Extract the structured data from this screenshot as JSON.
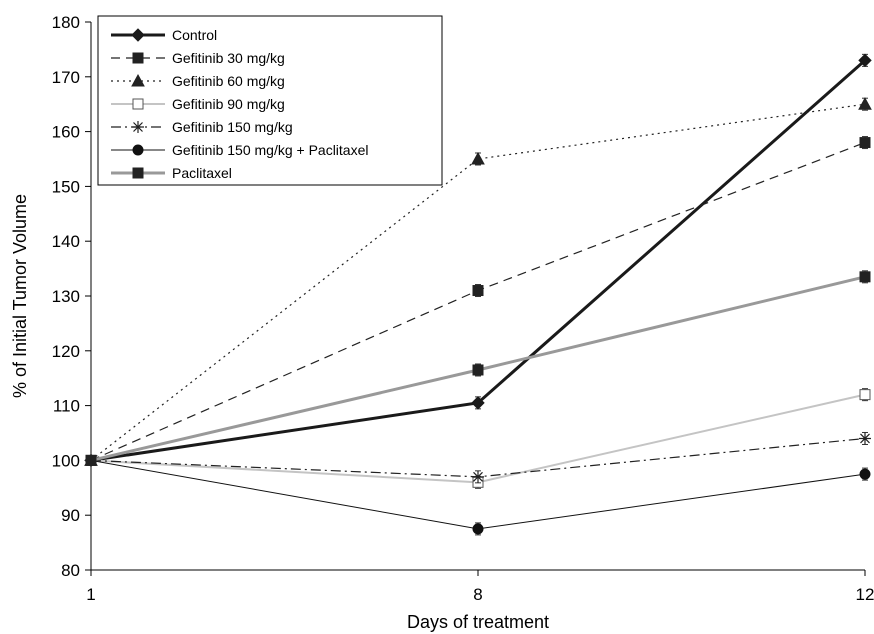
{
  "chart_data": {
    "type": "line",
    "title": "",
    "xlabel": "Days of treatment",
    "ylabel": "% of Initial Tumor Volume",
    "categories": [
      "1",
      "8",
      "12"
    ],
    "ylim": [
      80,
      180
    ],
    "yticks": [
      80,
      90,
      100,
      110,
      120,
      130,
      140,
      150,
      160,
      170,
      180
    ],
    "grid": false,
    "legend_position": "top-left",
    "series": [
      {
        "name": "Control",
        "values": [
          100,
          110.5,
          173
        ],
        "color": "#1a1a1a",
        "dash": "solid",
        "marker": "diamond",
        "weight": "heavy"
      },
      {
        "name": "Gefitinib 30 mg/kg",
        "values": [
          100,
          131,
          158
        ],
        "color": "#222222",
        "dash": "dashed",
        "marker": "square",
        "weight": "normal"
      },
      {
        "name": "Gefitinib 60 mg/kg",
        "values": [
          100,
          155,
          165
        ],
        "color": "#222222",
        "dash": "dotted",
        "marker": "triangle",
        "weight": "normal"
      },
      {
        "name": "Gefitinib 90 mg/kg",
        "values": [
          100,
          96,
          112
        ],
        "color": "#c4c4c4",
        "dash": "solid",
        "marker": "open-square",
        "weight": "medium"
      },
      {
        "name": "Gefitinib 150 mg/kg",
        "values": [
          100,
          97,
          104
        ],
        "color": "#222222",
        "dash": "dashdot",
        "marker": "asterisk",
        "weight": "normal"
      },
      {
        "name": "Gefitinib 150 mg/kg + Paclitaxel",
        "values": [
          100,
          87.5,
          97.5
        ],
        "color": "#111111",
        "dash": "solid",
        "marker": "circle",
        "weight": "thin"
      },
      {
        "name": "Paclitaxel",
        "values": [
          100,
          116.5,
          133.5
        ],
        "color": "#999999",
        "dash": "solid",
        "marker": "filled-square",
        "weight": "heavy"
      }
    ]
  }
}
